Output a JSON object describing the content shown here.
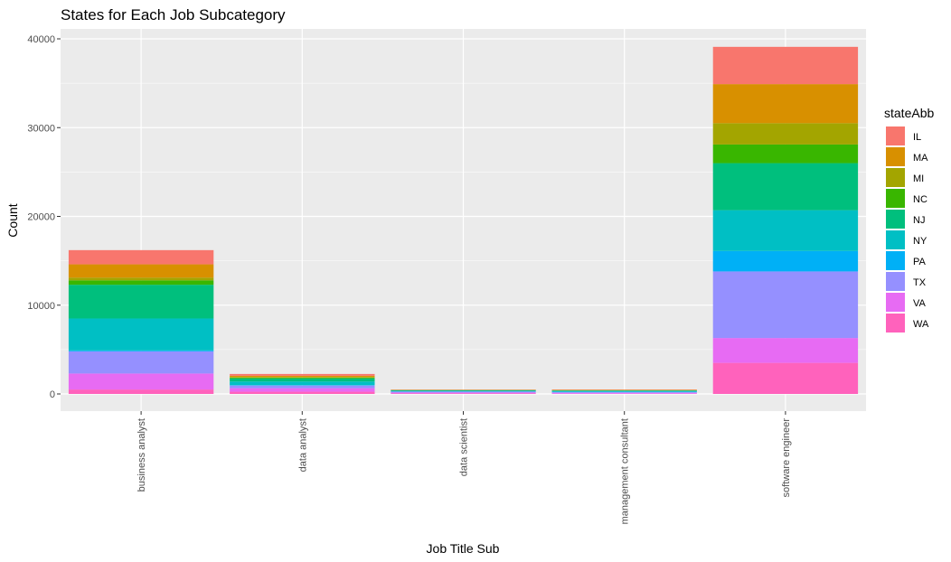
{
  "chart_data": {
    "type": "bar",
    "stacked": true,
    "title": "States for Each Job Subcategory",
    "xlabel": "Job Title Sub",
    "ylabel": "Count",
    "ylim": [
      0,
      41600
    ],
    "yticks": [
      0,
      10000,
      20000,
      30000,
      40000
    ],
    "ytick_labels": [
      "0",
      "10000",
      "20000",
      "30000",
      "40000"
    ],
    "grid": true,
    "legend": {
      "title": "stateAbb",
      "position": "right"
    },
    "categories": [
      "business analyst",
      "data analyst",
      "data scientist",
      "management consultant",
      "software engineer"
    ],
    "series": [
      {
        "name": "IL",
        "color": "#F8766D",
        "values": [
          1600,
          200,
          30,
          40,
          4200
        ]
      },
      {
        "name": "MA",
        "color": "#D89000",
        "values": [
          1500,
          150,
          30,
          40,
          4400
        ]
      },
      {
        "name": "MI",
        "color": "#A3A500",
        "values": [
          300,
          50,
          10,
          10,
          2400
        ]
      },
      {
        "name": "NC",
        "color": "#39B600",
        "values": [
          500,
          100,
          20,
          20,
          2100
        ]
      },
      {
        "name": "NJ",
        "color": "#00BF7D",
        "values": [
          3800,
          350,
          60,
          60,
          5300
        ]
      },
      {
        "name": "NY",
        "color": "#00BFC4",
        "values": [
          3600,
          400,
          70,
          80,
          4600
        ]
      },
      {
        "name": "PA",
        "color": "#00B0F6",
        "values": [
          100,
          50,
          20,
          30,
          2300
        ]
      },
      {
        "name": "TX",
        "color": "#9590FF",
        "values": [
          2500,
          300,
          100,
          100,
          7500
        ]
      },
      {
        "name": "VA",
        "color": "#E76BF3",
        "values": [
          1800,
          400,
          100,
          100,
          2800
        ]
      },
      {
        "name": "WA",
        "color": "#FF62BC",
        "values": [
          500,
          250,
          60,
          20,
          3500
        ]
      }
    ]
  }
}
